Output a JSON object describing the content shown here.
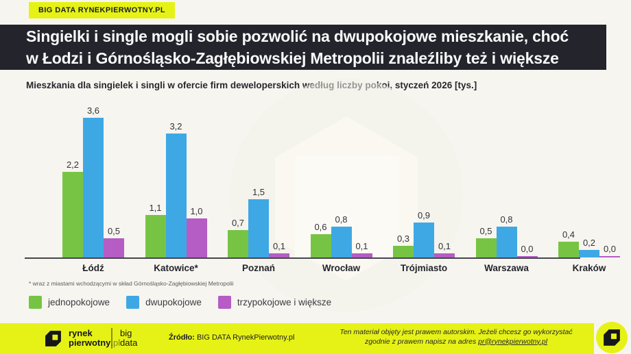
{
  "badge": {
    "label": "BIG DATA RYNEKPIERWOTNY.PL"
  },
  "title": {
    "line1": "Singielki i single mogli sobie pozwolić na dwupokojowe mieszkanie, choć",
    "line2": "w Łodzi i Górnośląsko-Zagłębiowskiej Metropolii znaleźliby też i większe"
  },
  "subtitle": "Mieszkania dla singielek i singli w ofercie firm deweloperskich według liczby pokoi, styczeń 2026 [tys.]",
  "footnote": "* wraz z miastami wchodzącymi w skład Górnośląsko-Zagłębiowskiej Metropolii",
  "chart_data": {
    "type": "bar",
    "title": "Mieszkania dla singielek i singli w ofercie firm deweloperskich według liczby pokoi, styczeń 2026 [tys.]",
    "categories": [
      "Łódź",
      "Katowice*",
      "Poznań",
      "Wrocław",
      "Trójmiasto",
      "Warszawa",
      "Kraków"
    ],
    "series": [
      {
        "name": "jednopokojowe",
        "color": "#77C444",
        "values": [
          2.2,
          1.1,
          0.7,
          0.6,
          0.3,
          0.5,
          0.4
        ]
      },
      {
        "name": "dwupokojowe",
        "color": "#3EA8E5",
        "values": [
          3.6,
          3.2,
          1.5,
          0.8,
          0.9,
          0.8,
          0.2
        ]
      },
      {
        "name": "trzypokojowe i większe",
        "color": "#B55CC5",
        "values": [
          0.5,
          1.0,
          0.1,
          0.1,
          0.1,
          0.0,
          0.0
        ]
      }
    ],
    "value_label_format": "comma-decimal-1",
    "ylim": [
      0,
      3.6
    ],
    "grid": false,
    "legend_position": "bottom-left",
    "xlabel": "",
    "ylabel": ""
  },
  "footer": {
    "brand_line1": "rynek",
    "brand_line2": "pierwotny",
    "brand_suffix": ".pl",
    "bigdata_line1": "big",
    "bigdata_line2": "data",
    "source_label": "Źródło:",
    "source_value": " BIG DATA RynekPierwotny.pl",
    "copyright_line1": "Ten materiał objęty jest prawem autorskim. Jeżeli chcesz go wykorzystać",
    "copyright_line2_prefix": "zgodnie z prawem napisz na adres ",
    "copyright_email": "pr@rynekpierwotny.pl"
  },
  "colors": {
    "lime": "#E6F216",
    "banner_bg": "#23242C",
    "page_bg": "#F7F5EF",
    "green": "#77C444",
    "blue": "#3EA8E5",
    "purple": "#B55CC5",
    "axis": "#45454C"
  }
}
